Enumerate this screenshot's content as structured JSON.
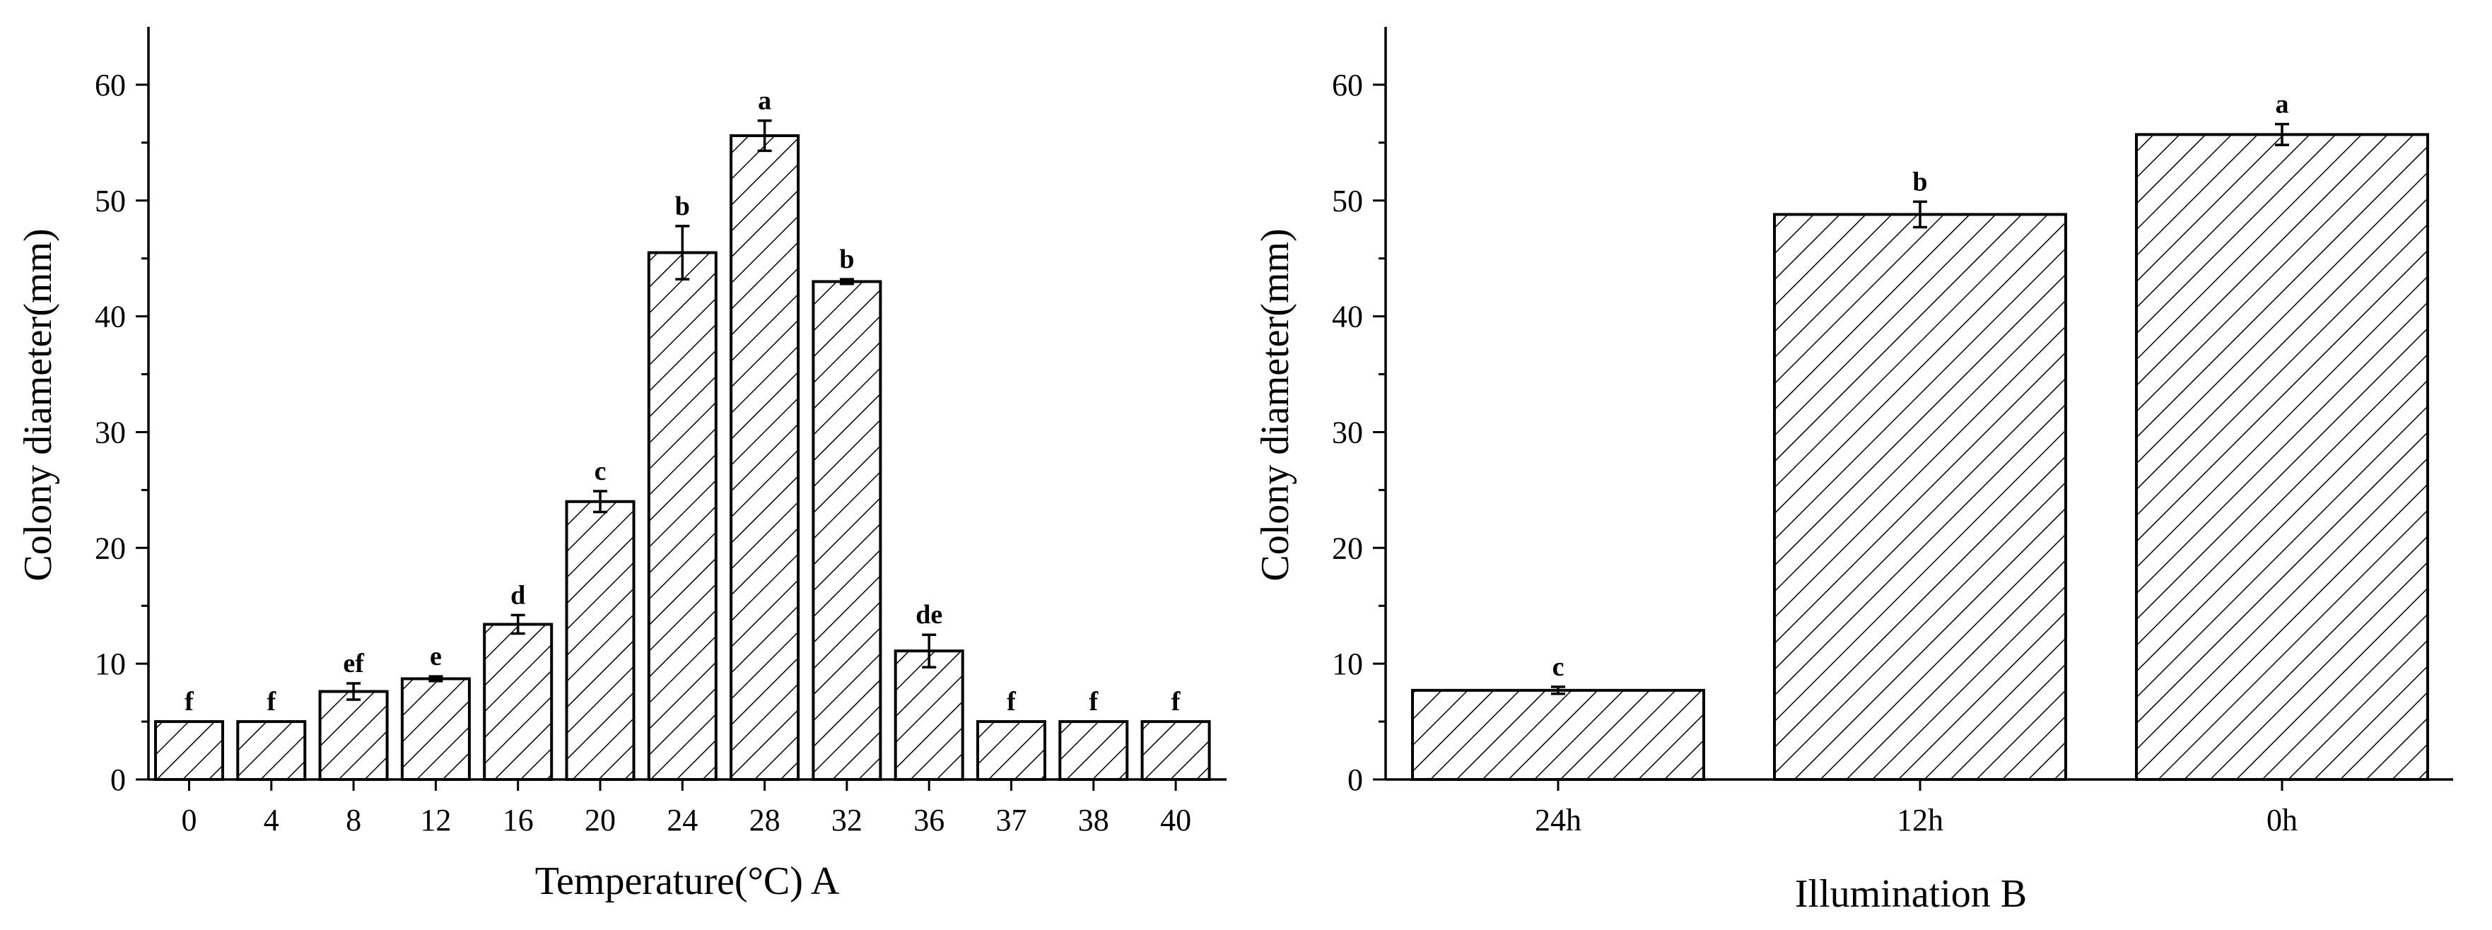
{
  "figure": {
    "background": "#ffffff",
    "bar_fill": "#ffffff",
    "bar_stroke": "#000000",
    "hatch_color": "#000000"
  },
  "chart_data": [
    {
      "type": "bar",
      "categories": [
        "0",
        "4",
        "8",
        "12",
        "16",
        "20",
        "24",
        "28",
        "32",
        "36",
        "37",
        "38",
        "40"
      ],
      "series": [
        {
          "values": [
            5,
            5,
            7.6,
            8.7,
            13.4,
            24,
            45.5,
            55.6,
            43,
            11.1,
            5,
            5,
            5
          ],
          "errors": [
            0,
            0,
            0.7,
            0.2,
            0.8,
            0.9,
            2.3,
            1.3,
            0.2,
            1.4,
            0,
            0,
            0
          ],
          "labels": [
            "f",
            "f",
            "ef",
            "e",
            "d",
            "c",
            "b",
            "a",
            "b",
            "de",
            "f",
            "f",
            "f"
          ]
        }
      ],
      "title": "",
      "xlabel": "Temperature(°C) A",
      "ylabel": "Colony diameter(mm)",
      "ylim": [
        0,
        65
      ],
      "yticks": [
        0,
        10,
        20,
        30,
        40,
        50,
        60
      ],
      "grid": false,
      "legend": "none",
      "pattern": "diagonal-hatch"
    },
    {
      "type": "bar",
      "categories": [
        "24h",
        "12h",
        "0h"
      ],
      "series": [
        {
          "values": [
            7.7,
            48.8,
            55.7
          ],
          "errors": [
            0.3,
            1.1,
            0.9
          ],
          "labels": [
            "c",
            "b",
            "a"
          ]
        }
      ],
      "title": "",
      "xlabel": "Illumination B",
      "ylabel": "Colony diameter(mm)",
      "ylim": [
        0,
        65
      ],
      "yticks": [
        0,
        10,
        20,
        30,
        40,
        50,
        60
      ],
      "grid": false,
      "legend": "none",
      "pattern": "diagonal-hatch"
    }
  ]
}
